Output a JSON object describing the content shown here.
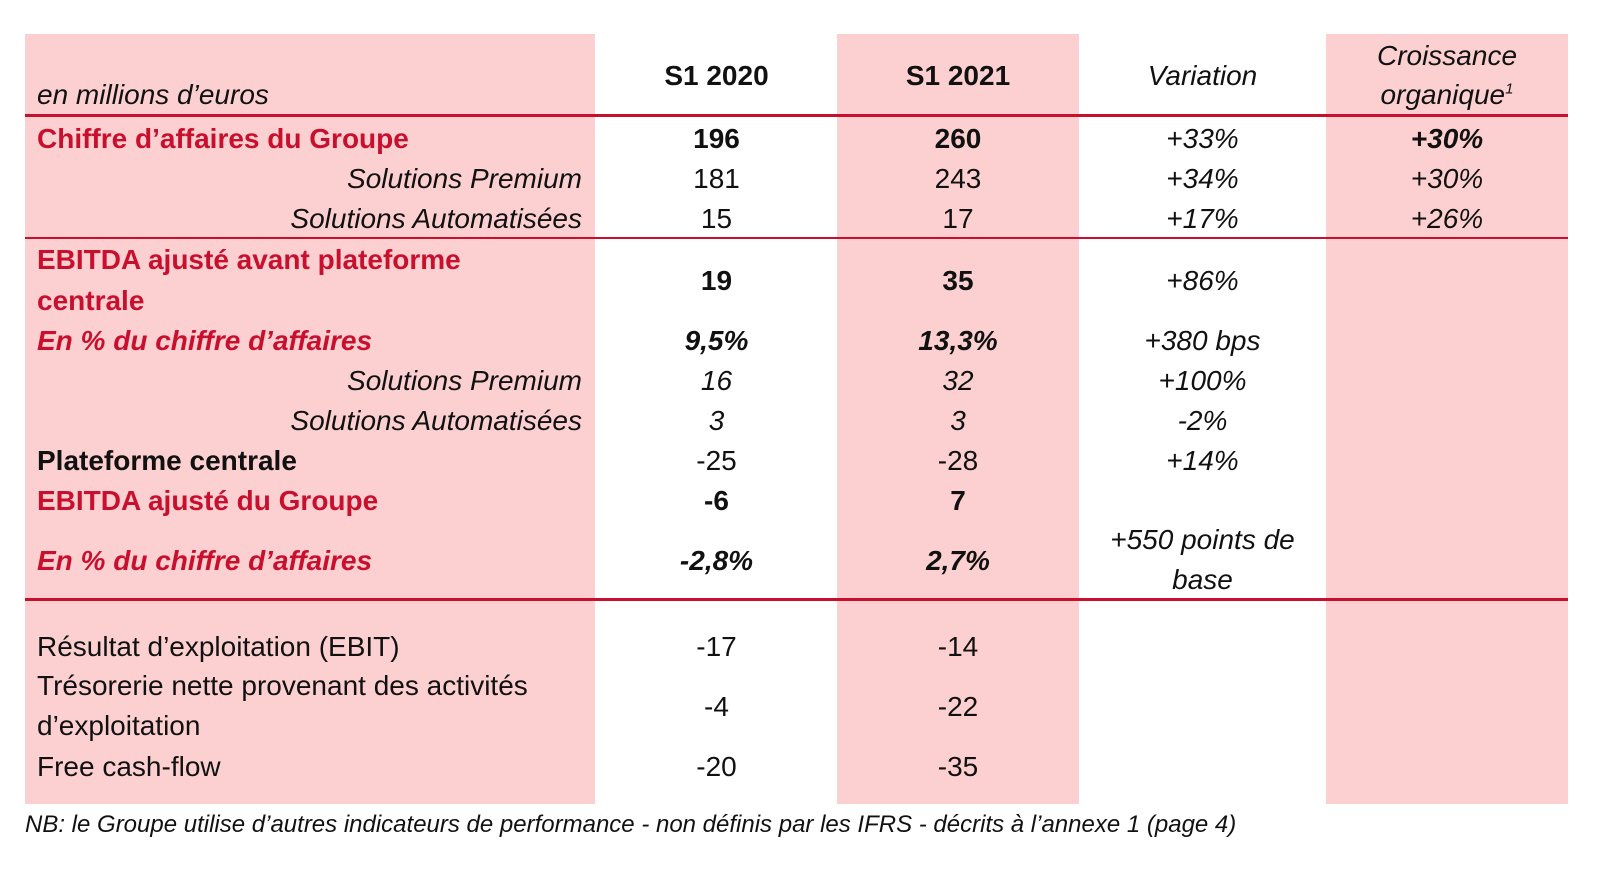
{
  "header": {
    "unit_label": "en millions d’euros",
    "col_s1_2020": "S1 2020",
    "col_s1_2021": "S1 2021",
    "col_variation": "Variation",
    "col_croissance_1": "Croissance",
    "col_croissance_2": "organique",
    "col_croissance_sup": "1"
  },
  "rows": [
    {
      "label": "Chiffre d’affaires du Groupe",
      "s1_2020": "196",
      "s1_2021": "260",
      "variation": "+33%",
      "croissance": "+30%"
    },
    {
      "label": "Solutions Premium",
      "s1_2020": "181",
      "s1_2021": "243",
      "variation": "+34%",
      "croissance": "+30%"
    },
    {
      "label": "Solutions Automatisées",
      "s1_2020": "15",
      "s1_2021": "17",
      "variation": "+17%",
      "croissance": "+26%"
    },
    {
      "label": "EBITDA ajusté avant plateforme centrale",
      "s1_2020": "19",
      "s1_2021": "35",
      "variation": "+86%",
      "croissance": ""
    },
    {
      "label": "En % du chiffre d’affaires",
      "s1_2020": "9,5%",
      "s1_2021": "13,3%",
      "variation": "+380 bps",
      "croissance": ""
    },
    {
      "label": "Solutions Premium",
      "s1_2020": "16",
      "s1_2021": "32",
      "variation": "+100%",
      "croissance": ""
    },
    {
      "label": "Solutions Automatisées",
      "s1_2020": "3",
      "s1_2021": "3",
      "variation": "-2%",
      "croissance": ""
    },
    {
      "label": "Plateforme centrale",
      "s1_2020": "-25",
      "s1_2021": "-28",
      "variation": "+14%",
      "croissance": ""
    },
    {
      "label": "EBITDA ajusté du Groupe",
      "s1_2020": "-6",
      "s1_2021": "7",
      "variation": "",
      "croissance": ""
    },
    {
      "label": "En % du chiffre d’affaires",
      "s1_2020": "-2,8%",
      "s1_2021": "2,7%",
      "variation": "+550 points de base",
      "croissance": ""
    },
    {
      "label": "Résultat d’exploitation (EBIT)",
      "s1_2020": "-17",
      "s1_2021": "-14",
      "variation": "",
      "croissance": ""
    },
    {
      "label": "Trésorerie nette provenant des activités d’exploitation",
      "s1_2020": "-4",
      "s1_2021": "-22",
      "variation": "",
      "croissance": ""
    },
    {
      "label": "Free cash-flow",
      "s1_2020": "-20",
      "s1_2021": "-35",
      "variation": "",
      "croissance": ""
    }
  ],
  "footnote": "NB: le Groupe utilise d’autres indicateurs de performance - non définis par les IFRS - décrits à l’annexe 1 (page 4)",
  "colors": {
    "band": "#fcd0d0",
    "accent_red": "#c8102e",
    "text": "#111111"
  }
}
